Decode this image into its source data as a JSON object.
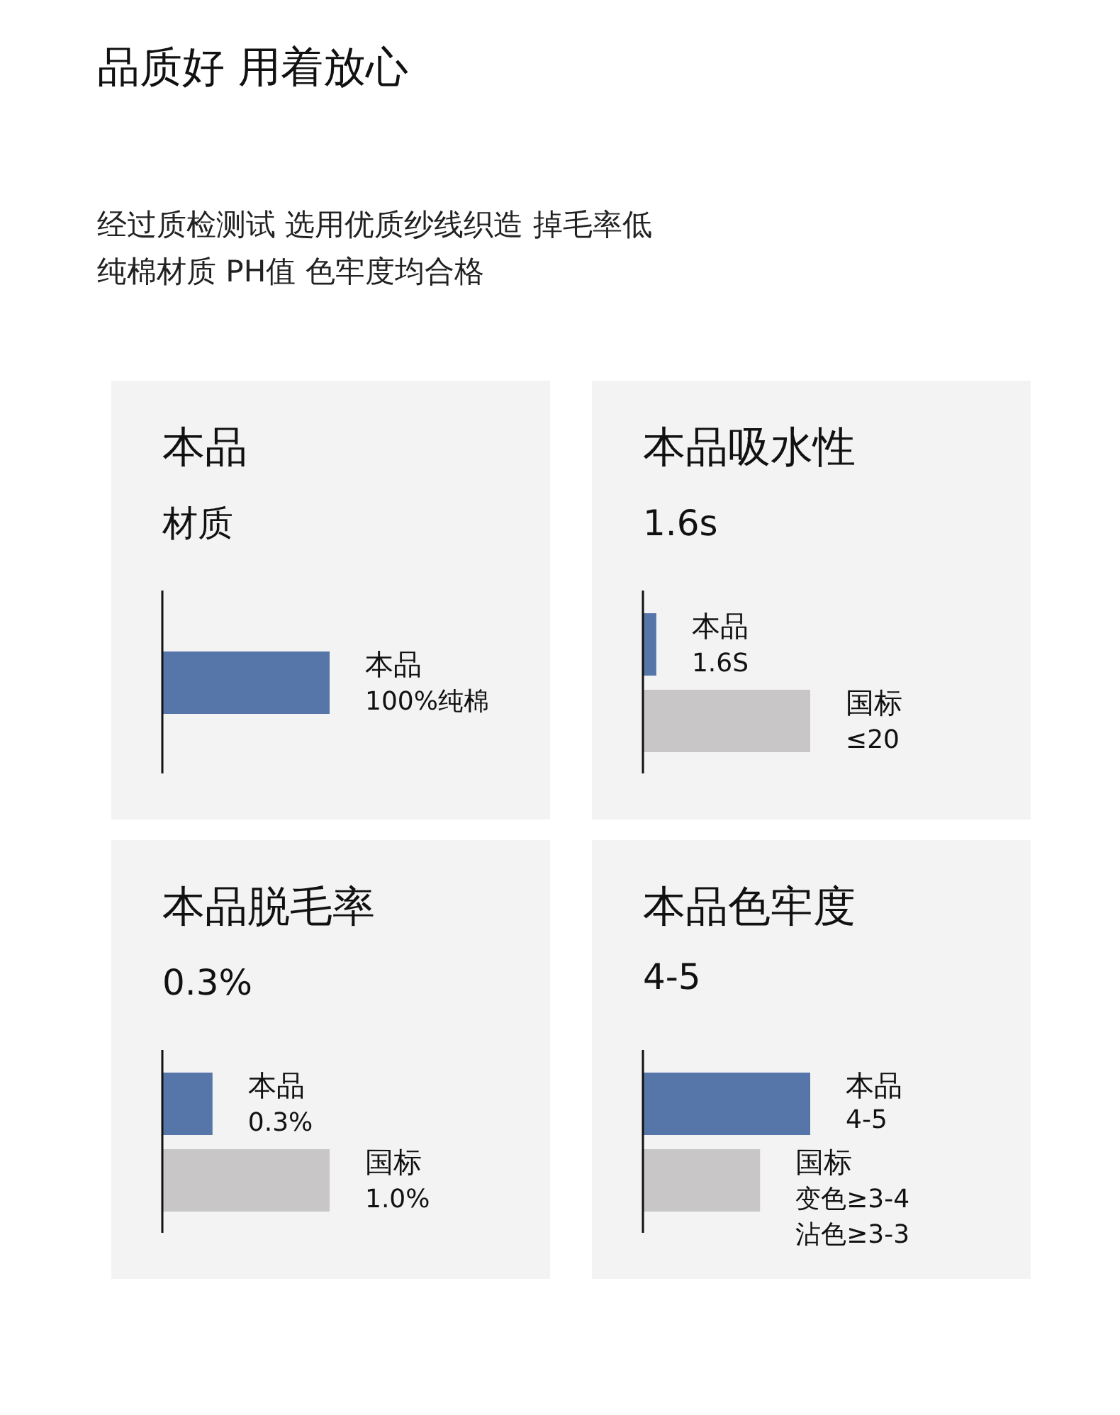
{
  "chart_data": [
    {
      "type": "other",
      "title": "品质好  用着放心",
      "annotations": [
        "经过质检测试  选用优质纱线织造  掉毛率低",
        "纯棉材质  PH值  色牢度均合格"
      ]
    },
    {
      "type": "bar",
      "orientation": "horizontal",
      "title": "本品",
      "subtitle": "材质",
      "categories": [
        "本品"
      ],
      "values": [
        100
      ],
      "colors": [
        "#5676a9"
      ],
      "value_labels": [
        "100%纯棉"
      ]
    },
    {
      "type": "bar",
      "orientation": "horizontal",
      "title": "本品吸水性",
      "subtitle": "1.6s",
      "categories": [
        "本品",
        "国标"
      ],
      "values": [
        1.6,
        20
      ],
      "colors": [
        "#5676a9",
        "#c8c6c6"
      ],
      "value_labels": [
        "1.6S",
        "≤20"
      ]
    },
    {
      "type": "bar",
      "orientation": "horizontal",
      "title": "本品脱毛率",
      "subtitle": "0.3%",
      "categories": [
        "本品",
        "国标"
      ],
      "values": [
        0.3,
        1.0
      ],
      "colors": [
        "#5676a9",
        "#c8c6c6"
      ],
      "value_labels": [
        "0.3%",
        "1.0%"
      ]
    },
    {
      "type": "bar",
      "orientation": "horizontal",
      "title": "本品色牢度",
      "subtitle": "4-5",
      "categories": [
        "本品",
        "国标"
      ],
      "values": [
        5,
        3.5
      ],
      "colors": [
        "#5676a9",
        "#c8c6c6"
      ],
      "value_labels": [
        "4-5",
        "变色≥3-4\n沾色≥3-3"
      ]
    }
  ]
}
